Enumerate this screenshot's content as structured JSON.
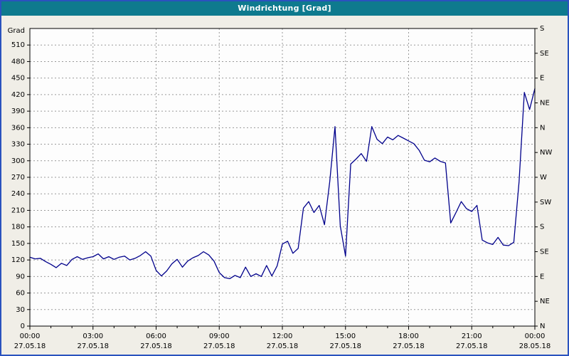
{
  "window": {
    "title": "Windrichtung [Grad]"
  },
  "chart_data": {
    "type": "line",
    "title": "Windrichtung [Grad]",
    "ylabel_left": "Grad",
    "ylim": [
      0,
      540
    ],
    "y_left_ticks": [
      0,
      30,
      60,
      90,
      120,
      150,
      180,
      210,
      240,
      270,
      300,
      330,
      360,
      390,
      420,
      450,
      480,
      510
    ],
    "y_right_labels": [
      {
        "deg": 540,
        "label": "S"
      },
      {
        "deg": 495,
        "label": "SE"
      },
      {
        "deg": 450,
        "label": "E"
      },
      {
        "deg": 405,
        "label": "NE"
      },
      {
        "deg": 360,
        "label": "N"
      },
      {
        "deg": 315,
        "label": "NW"
      },
      {
        "deg": 270,
        "label": "W"
      },
      {
        "deg": 225,
        "label": "SW"
      },
      {
        "deg": 180,
        "label": "S"
      },
      {
        "deg": 135,
        "label": "SE"
      },
      {
        "deg": 90,
        "label": "E"
      },
      {
        "deg": 45,
        "label": "NE"
      },
      {
        "deg": 0,
        "label": "N"
      }
    ],
    "xlim_hours": [
      0,
      24
    ],
    "x_ticks": [
      {
        "hour": 0,
        "time": "00:00",
        "date": "27.05.18"
      },
      {
        "hour": 3,
        "time": "03:00",
        "date": "27.05.18"
      },
      {
        "hour": 6,
        "time": "06:00",
        "date": "27.05.18"
      },
      {
        "hour": 9,
        "time": "09:00",
        "date": "27.05.18"
      },
      {
        "hour": 12,
        "time": "12:00",
        "date": "27.05.18"
      },
      {
        "hour": 15,
        "time": "15:00",
        "date": "27.05.18"
      },
      {
        "hour": 18,
        "time": "18:00",
        "date": "27.05.18"
      },
      {
        "hour": 21,
        "time": "21:00",
        "date": "27.05.18"
      },
      {
        "hour": 24,
        "time": "00:00",
        "date": "28.05.18"
      }
    ],
    "grid": true,
    "sample_interval_minutes": 15,
    "series": [
      {
        "name": "Windrichtung",
        "values": [
          125,
          122,
          123,
          117,
          112,
          106,
          114,
          110,
          121,
          126,
          121,
          124,
          126,
          131,
          122,
          126,
          121,
          125,
          127,
          120,
          123,
          128,
          135,
          127,
          101,
          91,
          100,
          113,
          121,
          107,
          118,
          124,
          128,
          135,
          129,
          118,
          97,
          88,
          86,
          92,
          88,
          107,
          90,
          95,
          90,
          110,
          91,
          109,
          149,
          154,
          132,
          141,
          214,
          226,
          206,
          219,
          184,
          262,
          362,
          182,
          127,
          294,
          303,
          313,
          299,
          362,
          339,
          331,
          343,
          338,
          346,
          341,
          336,
          331,
          319,
          301,
          298,
          305,
          299,
          296,
          187,
          206,
          226,
          213,
          208,
          219,
          156,
          151,
          148,
          161,
          147,
          146,
          152,
          262,
          424,
          393,
          431
        ]
      }
    ],
    "colors": {
      "line": "#00008b",
      "grid": "#999999",
      "plot_background": "#fdfdfd",
      "outer_background": "#f0eee7",
      "frame": "#2a52be",
      "titlebar": "#0e7a8e",
      "titlebar_text": "#ffffff",
      "axis": "#000000"
    }
  }
}
